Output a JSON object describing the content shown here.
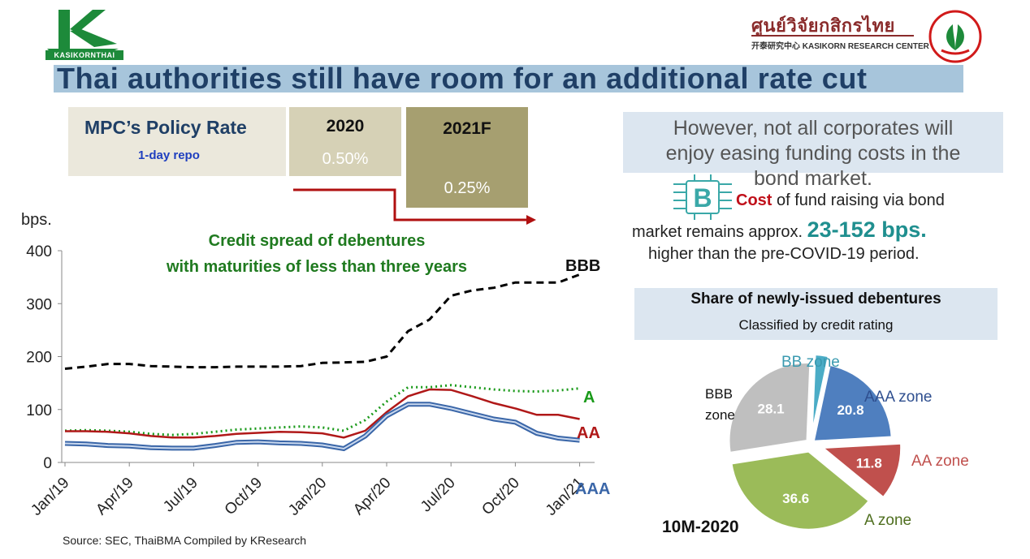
{
  "header": {
    "logo_text": "KASIKORNTHAI",
    "kresearch_thai": "ศูนย์วิจัยกสิกรไทย",
    "kresearch_sub": "开泰研究中心 KASIKORN RESEARCH CENTER"
  },
  "title": "Thai authorities still have room for an additional rate cut",
  "policy": {
    "label": "MPC’s Policy Rate",
    "sublabel": "1-day repo",
    "year1": "2020",
    "rate1": "0.50%",
    "year2": "2021F",
    "rate2": "0.25%"
  },
  "colors": {
    "title_bg": "#a7c5db",
    "bbb": "#000000",
    "a": "#1a9a1a",
    "aa": "#b01818",
    "aaa": "#4f7fbf",
    "arrow": "#b01010"
  },
  "chart_data": [
    {
      "type": "line",
      "title": "Credit spread of debentures with maturities of less than three years",
      "title_line1": "Credit spread of debentures",
      "title_line2": "with maturities of less than three years",
      "ylabel": "bps.",
      "ylim": [
        0,
        400
      ],
      "yticks": [
        "0",
        "100",
        "200",
        "300",
        "400"
      ],
      "xtick_labels": [
        "Jan/19",
        "Apr/19",
        "Jul/19",
        "Oct/19",
        "Jan/20",
        "Apr/20",
        "Jul/20",
        "Oct/20",
        "Jan/21"
      ],
      "x": [
        "Jan/19",
        "Feb/19",
        "Mar/19",
        "Apr/19",
        "May/19",
        "Jun/19",
        "Jul/19",
        "Aug/19",
        "Sep/19",
        "Oct/19",
        "Nov/19",
        "Dec/19",
        "Jan/20",
        "Feb/20",
        "Mar/20",
        "Apr/20",
        "May/20",
        "Jun/20",
        "Jul/20",
        "Aug/20",
        "Sep/20",
        "Oct/20",
        "Nov/20",
        "Dec/20",
        "Jan/21"
      ],
      "series": [
        {
          "name": "BBB",
          "style": "dashed",
          "values": [
            177,
            181,
            186,
            186,
            182,
            181,
            180,
            180,
            181,
            181,
            181,
            182,
            188,
            189,
            190,
            200,
            248,
            270,
            315,
            325,
            330,
            340,
            340,
            340,
            355
          ]
        },
        {
          "name": "A",
          "style": "dotted",
          "values": [
            60,
            61,
            60,
            58,
            54,
            52,
            54,
            58,
            62,
            64,
            66,
            68,
            66,
            60,
            80,
            115,
            142,
            142,
            146,
            142,
            138,
            135,
            134,
            136,
            140
          ]
        },
        {
          "name": "AA",
          "style": "solid",
          "values": [
            59,
            59,
            58,
            55,
            50,
            47,
            47,
            50,
            54,
            56,
            58,
            57,
            55,
            47,
            60,
            95,
            125,
            138,
            137,
            125,
            112,
            102,
            90,
            90,
            82
          ]
        },
        {
          "name": "AAA",
          "style": "double",
          "values": [
            36,
            35,
            32,
            31,
            28,
            27,
            27,
            32,
            38,
            39,
            37,
            36,
            33,
            26,
            50,
            88,
            110,
            110,
            102,
            92,
            82,
            76,
            55,
            46,
            42
          ]
        }
      ]
    },
    {
      "type": "pie",
      "title": "Share of newly-issued debentures",
      "subtitle": "Classified by credit rating",
      "period": "10M-2020",
      "slices": [
        {
          "name": "AAA zone",
          "value": 20.8,
          "label": "20.8",
          "color": "#4f7fbf"
        },
        {
          "name": "AA zone",
          "value": 11.8,
          "label": "11.8",
          "color": "#c0504d"
        },
        {
          "name": "A zone",
          "value": 36.6,
          "label": "36.6",
          "color": "#9bbb59"
        },
        {
          "name": "BBB zone",
          "name_line1": "BBB",
          "name_line2": "zone",
          "value": 28.1,
          "label": "28.1",
          "color": "#bfbfbf"
        },
        {
          "name": "BB zone",
          "value": 2.7,
          "label": "",
          "color": "#4bacc6"
        }
      ]
    }
  ],
  "right_panel": {
    "however_line1": "However, not all corporates will",
    "however_line2": "enjoy easing funding costs in the",
    "however_line3": "bond market.",
    "cost_word": "Cost",
    "cost_rest": " of fund raising via bond",
    "line2_start": "market remains approx. ",
    "line2_num": "23-152 bps.",
    "line3": "higher than the pre-COVID-19 period."
  },
  "source": "Source: SEC, ThaiBMA Compiled by KResearch"
}
